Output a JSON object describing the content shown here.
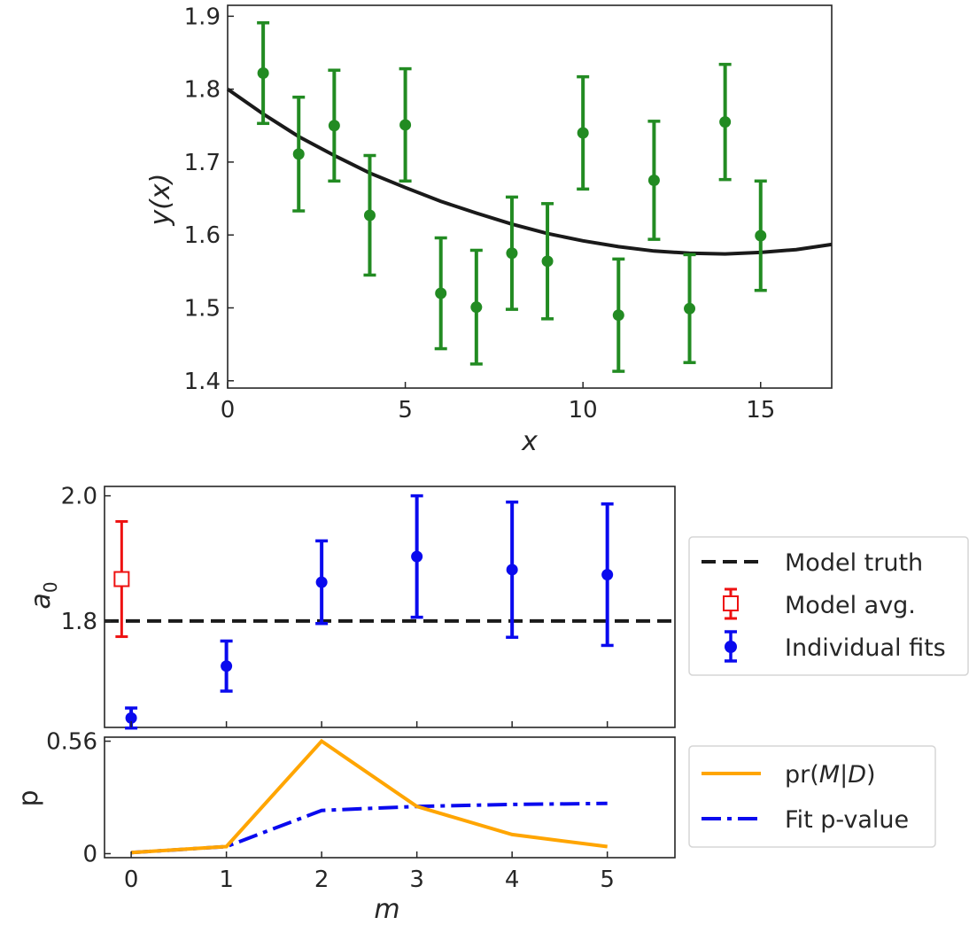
{
  "chart_data": [
    {
      "type": "scatter",
      "xlabel": "x",
      "ylabel": "y(x)",
      "xlim": [
        0,
        17
      ],
      "ylim": [
        1.39,
        1.915
      ],
      "xticks": [
        0,
        5,
        10,
        15
      ],
      "yticks": [
        1.4,
        1.5,
        1.6,
        1.7,
        1.8,
        1.9
      ],
      "xtick_labels": [
        "0",
        "5",
        "10",
        "15"
      ],
      "ytick_labels": [
        "1.4",
        "1.5",
        "1.6",
        "1.7",
        "1.8",
        "1.9"
      ],
      "grid": false,
      "colors": {
        "points": "#228B22",
        "curve": "#1a1a1a"
      },
      "series": [
        {
          "kind": "errorbar",
          "x": [
            1,
            2,
            3,
            4,
            5,
            6,
            7,
            8,
            9,
            10,
            11,
            12,
            13,
            14,
            15
          ],
          "y": [
            1.822,
            1.711,
            1.75,
            1.627,
            1.751,
            1.52,
            1.501,
            1.575,
            1.564,
            1.74,
            1.49,
            1.675,
            1.499,
            1.755,
            1.599
          ],
          "yerr": [
            0.069,
            0.078,
            0.076,
            0.082,
            0.077,
            0.076,
            0.078,
            0.077,
            0.079,
            0.077,
            0.077,
            0.081,
            0.074,
            0.079,
            0.075
          ]
        },
        {
          "kind": "curve",
          "x": [
            0,
            1,
            2,
            3,
            4,
            5,
            6,
            7,
            8,
            9,
            10,
            11,
            12,
            13,
            14,
            15,
            16,
            17
          ],
          "y": [
            1.8,
            1.766,
            1.735,
            1.709,
            1.685,
            1.665,
            1.646,
            1.63,
            1.615,
            1.602,
            1.592,
            1.584,
            1.578,
            1.575,
            1.574,
            1.576,
            1.58,
            1.587
          ]
        }
      ]
    },
    {
      "type": "scatter",
      "ylabel": "a",
      "ylabel_sub": "0",
      "xlim": [
        -0.28,
        5.71
      ],
      "ylim": [
        1.63,
        2.015
      ],
      "xticks": [
        0,
        1,
        2,
        3,
        4,
        5
      ],
      "yticks": [
        1.8,
        2.0
      ],
      "ytick_labels": [
        "1.8",
        "2.0"
      ],
      "grid": false,
      "legend_position": "right",
      "colors": {
        "truth": "#1a1a1a",
        "avg": "#ee1111",
        "fits": "#0a0aee"
      },
      "truth": 1.8,
      "model_avg": {
        "x": -0.1,
        "y": 1.867,
        "yerr": 0.092
      },
      "individual_fits": {
        "x": [
          0,
          1,
          2,
          3,
          4,
          5
        ],
        "y": [
          1.645,
          1.728,
          1.862,
          1.903,
          1.882,
          1.874
        ],
        "yerr": [
          0.016,
          0.04,
          0.066,
          0.097,
          0.108,
          0.113
        ]
      },
      "legend": [
        {
          "label": "Model truth",
          "marker": "dashed-line"
        },
        {
          "label": "Model avg.",
          "marker": "open-square-errorbar"
        },
        {
          "label": "Individual fits",
          "marker": "filled-circle-errorbar"
        }
      ]
    },
    {
      "type": "line",
      "xlabel": "m",
      "ylabel": "p",
      "xlim": [
        -0.28,
        5.71
      ],
      "ylim": [
        -0.02,
        0.58
      ],
      "xticks": [
        0,
        1,
        2,
        3,
        4,
        5
      ],
      "xtick_labels": [
        "0",
        "1",
        "2",
        "3",
        "4",
        "5"
      ],
      "yticks": [
        0,
        0.56
      ],
      "ytick_labels": [
        "0",
        "0.56"
      ],
      "grid": false,
      "legend_position": "right",
      "colors": {
        "pr": "#FFA500",
        "pvalue": "#0a0aee"
      },
      "x": [
        0,
        1,
        2,
        3,
        4,
        5
      ],
      "series": [
        {
          "name": "pr(M|D)",
          "values": [
            0.005,
            0.035,
            0.56,
            0.235,
            0.095,
            0.035
          ],
          "style": "solid"
        },
        {
          "name": "Fit p-value",
          "values": [
            0.005,
            0.035,
            0.215,
            0.235,
            0.245,
            0.25
          ],
          "style": "dashdot"
        }
      ],
      "legend": [
        {
          "label": "pr(",
          "italic_m": "M",
          "bar": "|",
          "italic_d": "D",
          "close": ")"
        },
        {
          "label": "Fit p-value"
        }
      ]
    }
  ]
}
